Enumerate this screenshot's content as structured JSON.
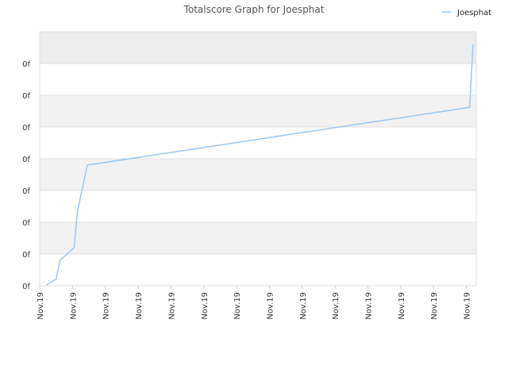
{
  "chart_data": {
    "type": "line",
    "title": "Totalscore Graph for Joesphat",
    "xlabel": "",
    "ylabel": "",
    "x_tick_labels": [
      "Nov.19",
      "Nov.19",
      "Nov.19",
      "Nov.19",
      "Nov.19",
      "Nov.19",
      "Nov.19",
      "Nov.19",
      "Nov.19",
      "Nov.19",
      "Nov.19",
      "Nov.19",
      "Nov.19",
      "Nov.19"
    ],
    "y_tick_labels": [
      "0f",
      "0f",
      "0f",
      "0f",
      "0f",
      "0f",
      "0f",
      "0f"
    ],
    "ylim": [
      0,
      8
    ],
    "xlim": [
      0,
      13.3
    ],
    "grid": true,
    "legend_position": "top-right",
    "colors": {
      "series": "#99c7ef",
      "band": "#f2f2f2",
      "top_band": "#ededed",
      "grid": "#e0e0e0"
    },
    "series": [
      {
        "name": "Joesphat",
        "x": [
          0.2,
          0.5,
          0.62,
          1.05,
          1.15,
          1.45,
          13.1,
          13.2
        ],
        "y": [
          0.02,
          0.21,
          0.8,
          1.2,
          2.35,
          3.8,
          5.62,
          7.6
        ]
      }
    ]
  }
}
